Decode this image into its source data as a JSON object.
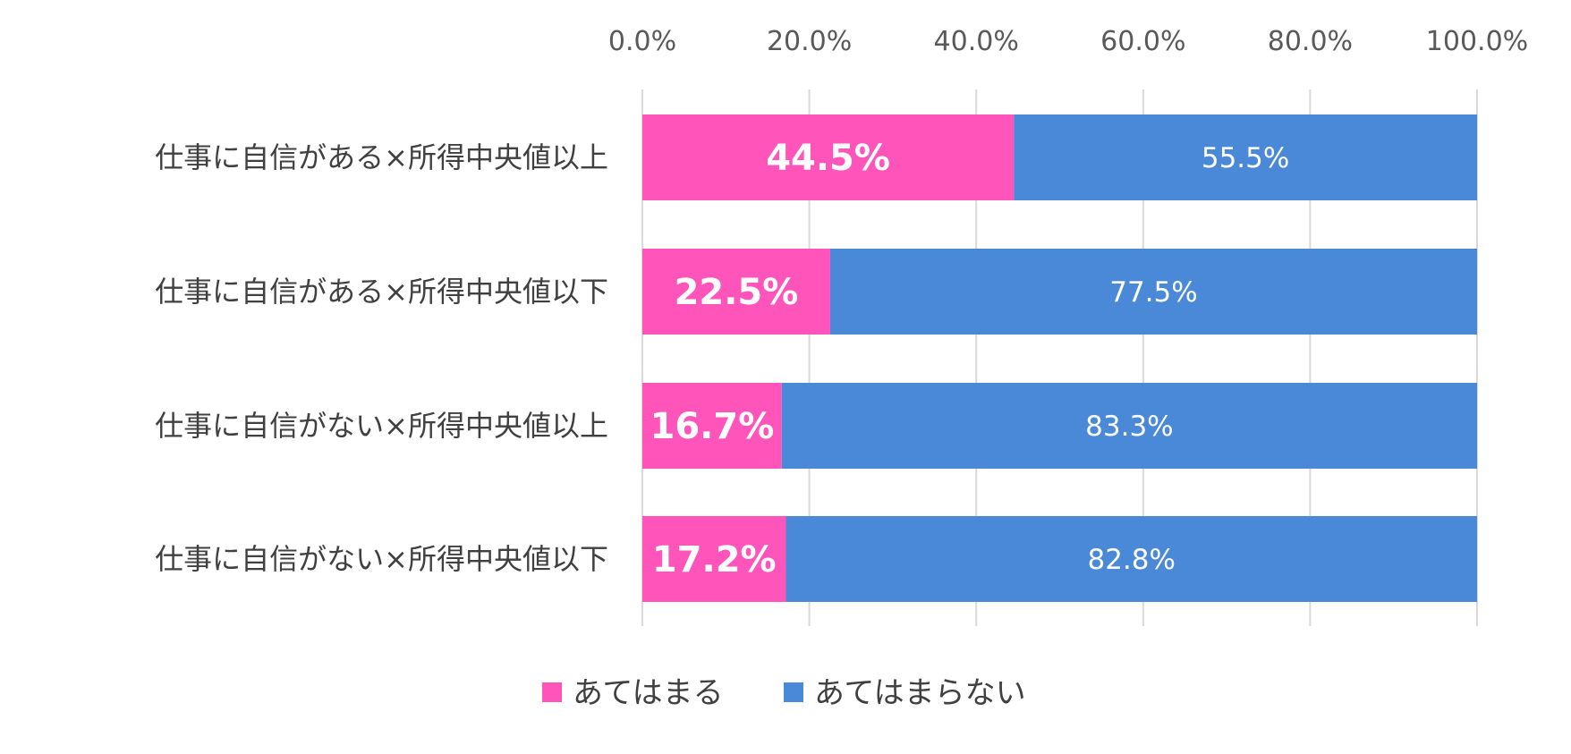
{
  "chart_data": {
    "type": "bar",
    "orientation": "horizontal",
    "stacked": true,
    "categories": [
      "仕事に自信がある×所得中央値以上",
      "仕事に自信がある×所得中央値以下",
      "仕事に自信がない×所得中央値以上",
      "仕事に自信がない×所得中央値以下"
    ],
    "series": [
      {
        "name": "あてはまる",
        "color": "#FF55BB",
        "values": [
          44.5,
          22.5,
          16.7,
          17.2
        ],
        "labels": [
          "44.5%",
          "22.5%",
          "16.7%",
          "17.2%"
        ]
      },
      {
        "name": "あてはまらない",
        "color": "#4A89D8",
        "values": [
          55.5,
          77.5,
          83.3,
          82.8
        ],
        "labels": [
          "55.5%",
          "77.5%",
          "83.3%",
          "82.8%"
        ]
      }
    ],
    "xlim": [
      0,
      100
    ],
    "xticks": [
      0,
      20,
      40,
      60,
      80,
      100
    ],
    "xtick_labels": [
      "0.0%",
      "20.0%",
      "40.0%",
      "60.0%",
      "80.0%",
      "100.0%"
    ],
    "x_axis_position": "top",
    "grid": true,
    "legend_position": "bottom"
  }
}
